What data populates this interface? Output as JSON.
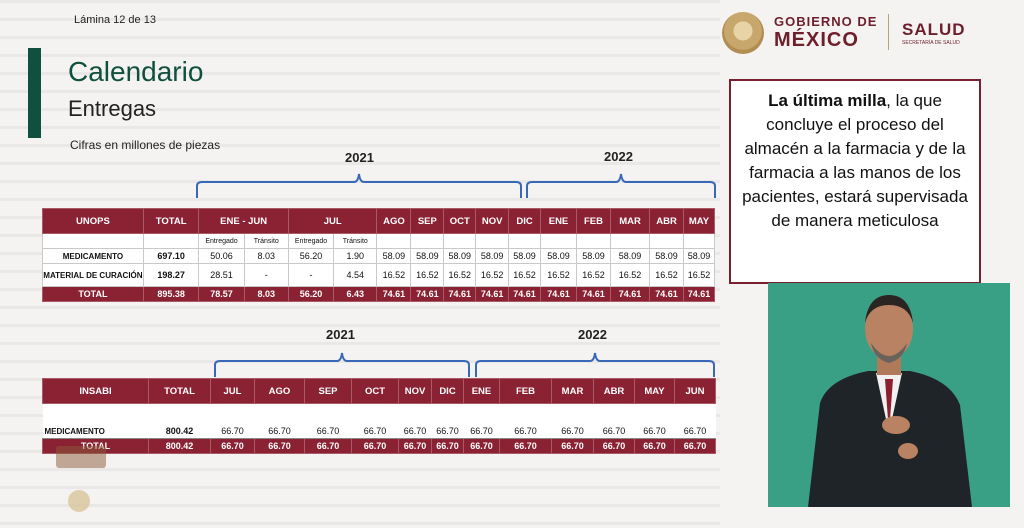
{
  "slide": {
    "number_label": "Lámina 12 de 13",
    "title": "Calendario",
    "subtitle": "Entregas",
    "note": "Cifras en millones de piezas"
  },
  "logo": {
    "line1": "GOBIERNO DE",
    "line2": "MÉXICO",
    "dept": "SALUD",
    "dept_sub": "SECRETARÍA DE SALUD"
  },
  "callout": {
    "bold": "La última milla",
    "rest": ", la que concluye el proceso del almacén a la farmacia y de la farmacia a las manos de los pacientes, estará supervisada de manera meticulosa"
  },
  "table1": {
    "year_left": "2021",
    "year_right": "2022",
    "headers": [
      "UNOPS",
      "TOTAL",
      "ENE - JUN",
      "JUL",
      "AGO",
      "SEP",
      "OCT",
      "NOV",
      "DIC",
      "ENE",
      "FEB",
      "MAR",
      "ABR",
      "MAY"
    ],
    "subheaders": [
      "Entregado",
      "Tránsito",
      "Entregado",
      "Tránsito"
    ],
    "rows": [
      {
        "label": "MEDICAMENTO",
        "values": [
          "697.10",
          "50.06",
          "8.03",
          "56.20",
          "1.90",
          "58.09",
          "58.09",
          "58.09",
          "58.09",
          "58.09",
          "58.09",
          "58.09",
          "58.09",
          "58.09",
          "58.09"
        ]
      },
      {
        "label": "MATERIAL DE CURACIÓN",
        "values": [
          "198.27",
          "28.51",
          "-",
          "-",
          "4.54",
          "16.52",
          "16.52",
          "16.52",
          "16.52",
          "16.52",
          "16.52",
          "16.52",
          "16.52",
          "16.52",
          "16.52"
        ]
      }
    ],
    "total": {
      "label": "TOTAL",
      "values": [
        "895.38",
        "78.57",
        "8.03",
        "56.20",
        "6.43",
        "74.61",
        "74.61",
        "74.61",
        "74.61",
        "74.61",
        "74.61",
        "74.61",
        "74.61",
        "74.61",
        "74.61"
      ]
    }
  },
  "table2": {
    "year_left": "2021",
    "year_right": "2022",
    "headers": [
      "INSABI",
      "TOTAL",
      "JUL",
      "AGO",
      "SEP",
      "OCT",
      "NOV",
      "DIC",
      "ENE",
      "FEB",
      "MAR",
      "ABR",
      "MAY",
      "JUN"
    ],
    "row": {
      "label": "MEDICAMENTO",
      "values": [
        "800.42",
        "66.70",
        "66.70",
        "66.70",
        "66.70",
        "66.70",
        "66.70",
        "66.70",
        "66.70",
        "66.70",
        "66.70",
        "66.70",
        "66.70"
      ]
    },
    "total": {
      "label": "TOTAL",
      "values": [
        "800.42",
        "66.70",
        "66.70",
        "66.70",
        "66.70",
        "66.70",
        "66.70",
        "66.70",
        "66.70",
        "66.70",
        "66.70",
        "66.70",
        "66.70"
      ]
    }
  },
  "colors": {
    "accent_green": "#10503e",
    "brand_maroon": "#8b2233",
    "video_bg": "#3aa085"
  }
}
